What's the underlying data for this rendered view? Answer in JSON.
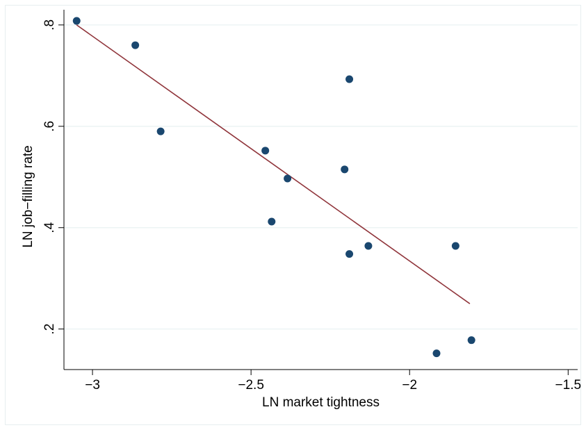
{
  "chart_data": {
    "type": "scatter",
    "xlabel": "LN market tightness",
    "ylabel": "LN job−filling rate",
    "xlim": [
      -3.09,
      -1.47
    ],
    "ylim": [
      0.12,
      0.83
    ],
    "x_ticks": [
      {
        "value": -3,
        "label": "−3"
      },
      {
        "value": -2.5,
        "label": "−2.5"
      },
      {
        "value": -2,
        "label": "−2"
      },
      {
        "value": -1.5,
        "label": "−1.5"
      }
    ],
    "y_ticks": [
      {
        "value": 0.2,
        "label": ".2"
      },
      {
        "value": 0.4,
        "label": ".4"
      },
      {
        "value": 0.6,
        "label": ".6"
      },
      {
        "value": 0.8,
        "label": ".8"
      }
    ],
    "grid": "horizontal",
    "series": [
      {
        "type": "scatter",
        "color": "#1a476f",
        "points": [
          {
            "x": -3.05,
            "y": 0.808
          },
          {
            "x": -2.865,
            "y": 0.76
          },
          {
            "x": -2.785,
            "y": 0.59
          },
          {
            "x": -2.455,
            "y": 0.552
          },
          {
            "x": -2.385,
            "y": 0.497
          },
          {
            "x": -2.435,
            "y": 0.412
          },
          {
            "x": -2.205,
            "y": 0.515
          },
          {
            "x": -2.19,
            "y": 0.693
          },
          {
            "x": -2.19,
            "y": 0.348
          },
          {
            "x": -2.13,
            "y": 0.364
          },
          {
            "x": -1.855,
            "y": 0.364
          },
          {
            "x": -1.915,
            "y": 0.152
          },
          {
            "x": -1.805,
            "y": 0.178
          }
        ]
      },
      {
        "type": "line",
        "color": "#90353b",
        "points": [
          {
            "x": -3.05,
            "y": 0.8
          },
          {
            "x": -1.81,
            "y": 0.25
          }
        ]
      }
    ]
  },
  "colors": {
    "background": "#ffffff",
    "plot_background": "#ffffff",
    "grid": "#eaf2f3",
    "marker": "#1a476f",
    "fit_line": "#90353b",
    "outer_border": "#e7eef0"
  }
}
